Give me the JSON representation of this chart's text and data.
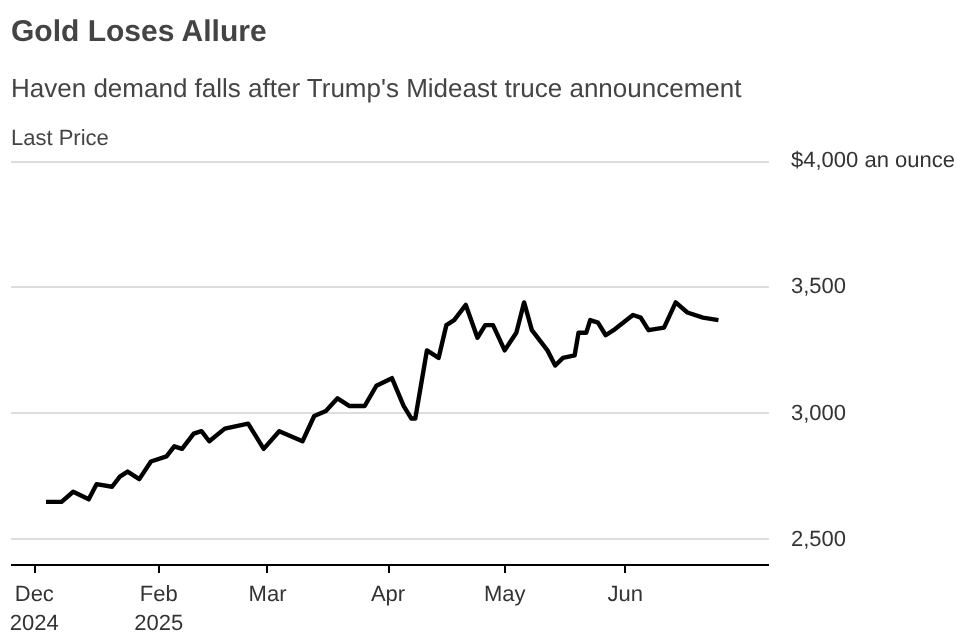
{
  "chart_data": {
    "type": "line",
    "title": "Gold Loses Allure",
    "subtitle": "Haven demand falls after Trump's Mideast truce announcement",
    "ylabel": "Last Price",
    "x": [
      "2025-01-03",
      "2025-01-07",
      "2025-01-10",
      "2025-01-14",
      "2025-01-16",
      "2025-01-20",
      "2025-01-22",
      "2025-01-24",
      "2025-01-27",
      "2025-01-30",
      "2025-02-03",
      "2025-02-05",
      "2025-02-07",
      "2025-02-10",
      "2025-02-12",
      "2025-02-14",
      "2025-02-18",
      "2025-02-24",
      "2025-02-28",
      "2025-03-04",
      "2025-03-10",
      "2025-03-13",
      "2025-03-16",
      "2025-03-19",
      "2025-03-22",
      "2025-03-26",
      "2025-03-29",
      "2025-04-02",
      "2025-04-05",
      "2025-04-07",
      "2025-04-08",
      "2025-04-11",
      "2025-04-14",
      "2025-04-16",
      "2025-04-18",
      "2025-04-21",
      "2025-04-24",
      "2025-04-26",
      "2025-04-28",
      "2025-05-01",
      "2025-05-04",
      "2025-05-06",
      "2025-05-08",
      "2025-05-12",
      "2025-05-14",
      "2025-05-16",
      "2025-05-19",
      "2025-05-20",
      "2025-05-22",
      "2025-05-23",
      "2025-05-25",
      "2025-05-27",
      "2025-05-29",
      "2025-06-03",
      "2025-06-05",
      "2025-06-07",
      "2025-06-11",
      "2025-06-14",
      "2025-06-17",
      "2025-06-21",
      "2025-06-25"
    ],
    "series": [
      {
        "color": "#000000",
        "values": [
          2650,
          2650,
          2690,
          2660,
          2720,
          2710,
          2750,
          2770,
          2740,
          2810,
          2830,
          2870,
          2860,
          2920,
          2930,
          2890,
          2940,
          2960,
          2860,
          2930,
          2890,
          2990,
          3010,
          3060,
          3030,
          3030,
          3110,
          3140,
          3030,
          2980,
          2980,
          3250,
          3220,
          3350,
          3370,
          3430,
          3300,
          3350,
          3350,
          3250,
          3320,
          3440,
          3330,
          3250,
          3190,
          3220,
          3230,
          3320,
          3320,
          3370,
          3360,
          3310,
          3330,
          3390,
          3380,
          3330,
          3340,
          3440,
          3400,
          3380,
          3370
        ]
      }
    ],
    "xlim": [
      "2024-12-25",
      "2025-07-08"
    ],
    "xticks": [
      {
        "value": "2024-12-31",
        "label": "Dec\n2024"
      },
      {
        "value": "2025-02-01",
        "label": "Feb\n2025"
      },
      {
        "value": "2025-03-01",
        "label": "Mar"
      },
      {
        "value": "2025-04-01",
        "label": "Apr"
      },
      {
        "value": "2025-05-01",
        "label": "May"
      },
      {
        "value": "2025-06-01",
        "label": "Jun"
      }
    ],
    "ylim": [
      2400,
      4000
    ],
    "yticks": [
      {
        "value": 2500,
        "label": "2,500"
      },
      {
        "value": 3000,
        "label": "3,000"
      },
      {
        "value": 3500,
        "label": "3,500"
      },
      {
        "value": 4000,
        "label": "$4,000 an ounce"
      }
    ],
    "grid": "y",
    "marker": "none",
    "line_style": "solid"
  }
}
